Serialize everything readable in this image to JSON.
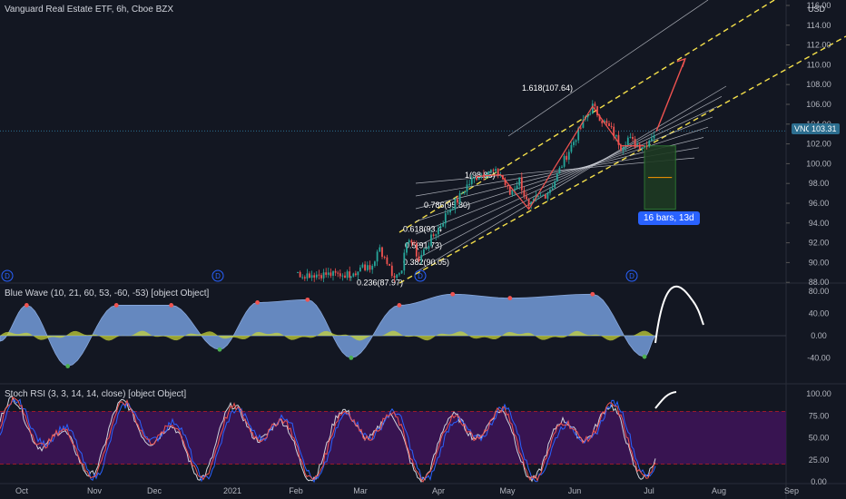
{
  "header": {
    "main_title": "Vanguard Real Estate ETF, 6h, Cboe BZX",
    "currency": "USD",
    "ticker": "VNQ",
    "last_price": "103.31",
    "pane1_title": "Blue Wave (10, 21, 60, 53, -60, -53) [object Object]",
    "pane2_title": "Stoch RSI (3, 3, 14, 14, close) [object Object]"
  },
  "bars_badge": "16 bars, 13d",
  "marker_letter": "D",
  "colors": {
    "background": "#131722",
    "up_candle": "#26a69a",
    "down_candle": "#ef5350",
    "channel_dash": "#f5e04a",
    "wave_fill": "#6a8fc8",
    "wave_secondary": "#c6d23a",
    "rsi_band": "#3a1454",
    "projection_arrow": "#ef5350",
    "rsi_k": "#2962ff",
    "rsi_d": "#ef5350"
  },
  "chart_data": [
    {
      "type": "candlestick",
      "title": "Vanguard Real Estate ETF, 6h, Cboe BZX",
      "ylabel": "USD",
      "ylim": [
        87.5,
        116.5
      ],
      "y_ticks": [
        "116.00",
        "114.00",
        "112.00",
        "110.00",
        "108.00",
        "106.00",
        "104.00",
        "102.00",
        "100.00",
        "98.00",
        "96.00",
        "94.00",
        "92.00",
        "90.00",
        "88.00"
      ],
      "x_ticks": [
        "Oct",
        "Nov",
        "Dec",
        "2021",
        "Feb",
        "Mar",
        "Apr",
        "May",
        "Jun",
        "Jul",
        "Aug",
        "Sep"
      ],
      "last_value": 103.31,
      "price_path": [
        {
          "date": "Feb 28",
          "value": 88.6
        },
        {
          "date": "Mar 3",
          "value": 89.8
        },
        {
          "date": "Mar 6",
          "value": 89.2
        },
        {
          "date": "Mar 10",
          "value": 91.4
        },
        {
          "date": "Mar 13",
          "value": 90.1
        },
        {
          "date": "Mar 16",
          "value": 88.4
        },
        {
          "date": "Mar 19",
          "value": 89.6
        },
        {
          "date": "Mar 22",
          "value": 92.6
        },
        {
          "date": "Mar 24",
          "value": 91.5
        },
        {
          "date": "Mar 26",
          "value": 90.3
        },
        {
          "date": "Mar 29",
          "value": 91.6
        },
        {
          "date": "Apr 1",
          "value": 92.4
        },
        {
          "date": "Apr 5",
          "value": 93.8
        },
        {
          "date": "Apr 8",
          "value": 95.2
        },
        {
          "date": "Apr 12",
          "value": 96.3
        },
        {
          "date": "Apr 16",
          "value": 97.8
        },
        {
          "date": "Apr 20",
          "value": 98.7
        },
        {
          "date": "Apr 25",
          "value": 99.3
        },
        {
          "date": "Apr 30",
          "value": 98.9
        },
        {
          "date": "May 4",
          "value": 96.9
        },
        {
          "date": "May 8",
          "value": 98.4
        },
        {
          "date": "May 12",
          "value": 95.4
        },
        {
          "date": "May 15",
          "value": 96.4
        },
        {
          "date": "May 19",
          "value": 96.9
        },
        {
          "date": "May 22",
          "value": 97.8
        },
        {
          "date": "May 26",
          "value": 99.9
        },
        {
          "date": "May 30",
          "value": 101.8
        },
        {
          "date": "Jun 3",
          "value": 103.2
        },
        {
          "date": "Jun 6",
          "value": 104.6
        },
        {
          "date": "Jun 9",
          "value": 105.8
        },
        {
          "date": "Jun 13",
          "value": 104.4
        },
        {
          "date": "Jun 17",
          "value": 103.4
        },
        {
          "date": "Jun 21",
          "value": 101.8
        },
        {
          "date": "Jun 24",
          "value": 102.6
        },
        {
          "date": "Jun 27",
          "value": 102.0
        },
        {
          "date": "Jul 1",
          "value": 101.8
        },
        {
          "date": "Jul 4",
          "value": 102.8
        },
        {
          "date": "Jul 6",
          "value": 103.3
        }
      ],
      "fib_labels": [
        {
          "label": "1.618(107.64)",
          "value": 107.64
        },
        {
          "label": "1(98.85)",
          "value": 98.85
        },
        {
          "label": "0.786(95.80)",
          "value": 95.8
        },
        {
          "label": "0.618(93.4",
          "value": 93.4
        },
        {
          "label": "0.5(91.73)",
          "value": 91.73
        },
        {
          "label": "0.382(90.05)",
          "value": 90.05
        },
        {
          "label": "0.236(87.97)",
          "value": 87.97
        }
      ],
      "projection": {
        "from": {
          "date": "Jul 6",
          "value": 103.3
        },
        "to": {
          "date": "Jul 18",
          "value": 110.6
        }
      },
      "date_range_box": {
        "from": "Jul 1",
        "to": "Jul 14",
        "high": 101.8,
        "low": 95.4,
        "label": "16 bars, 13d"
      }
    },
    {
      "type": "area",
      "title": "Blue Wave (10, 21, 60, 53, -60, -53) [object Object]",
      "ylim": [
        -60,
        90
      ],
      "y_ticks": [
        "80.00",
        "40.00",
        "0.00",
        "-40.00"
      ],
      "approx_peaks": [
        {
          "date": "Oct 3",
          "value": 55
        },
        {
          "date": "Oct 20",
          "value": -55
        },
        {
          "date": "Nov 12",
          "value": 55
        },
        {
          "date": "Dec 8",
          "value": 55
        },
        {
          "date": "Dec 28",
          "value": -25
        },
        {
          "date": "Jan 15",
          "value": 60
        },
        {
          "date": "Feb 8",
          "value": 65
        },
        {
          "date": "Feb 28",
          "value": -40
        },
        {
          "date": "Mar 18",
          "value": 55
        },
        {
          "date": "Apr 10",
          "value": 75
        },
        {
          "date": "May 4",
          "value": 68
        },
        {
          "date": "Jun 9",
          "value": 75
        },
        {
          "date": "Jul 1",
          "value": -38
        }
      ]
    },
    {
      "type": "line",
      "title": "Stoch RSI (3, 3, 14, 14, close) [object Object]",
      "ylim": [
        -5,
        105
      ],
      "y_ticks": [
        "100.00",
        "75.00",
        "50.00",
        "25.00",
        "0.00"
      ],
      "band": [
        20,
        80
      ],
      "series": []
    }
  ]
}
